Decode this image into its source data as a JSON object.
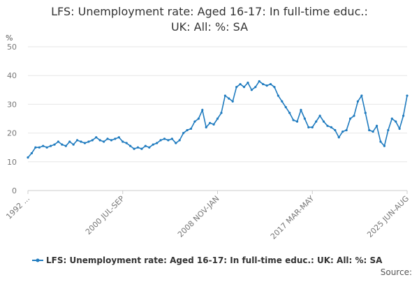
{
  "chart_data": {
    "type": "line",
    "title": [
      "LFS: Unemployment rate: Aged 16-17: In full-time educ.:",
      "UK: All: %: SA"
    ],
    "y_label": "%",
    "source": "Source:",
    "categories": [
      "1992 ...",
      null,
      null,
      null,
      null,
      null,
      null,
      null,
      null,
      null,
      null,
      null,
      null,
      null,
      null,
      null,
      null,
      null,
      null,
      null,
      null,
      null,
      null,
      null,
      null,
      "2000 JUL-SEP",
      null,
      null,
      null,
      null,
      null,
      null,
      null,
      null,
      null,
      null,
      null,
      null,
      null,
      null,
      null,
      null,
      null,
      null,
      null,
      null,
      null,
      null,
      null,
      null,
      "2008 NOV-JAN",
      null,
      null,
      null,
      null,
      null,
      null,
      null,
      null,
      null,
      null,
      null,
      null,
      null,
      null,
      null,
      null,
      null,
      null,
      null,
      null,
      null,
      null,
      null,
      null,
      "2017 MAR-MAY",
      null,
      null,
      null,
      null,
      null,
      null,
      null,
      null,
      null,
      null,
      null,
      null,
      null,
      null,
      null,
      null,
      null,
      null,
      null,
      null,
      null,
      null,
      null,
      null,
      "2025 JUN-AUG"
    ],
    "series": [
      {
        "name": "LFS: Unemployment rate: Aged 16-17: In full-time educ.: UK: All: %: SA",
        "color": "#1f7bbf",
        "values": [
          11.5,
          13,
          15,
          15,
          15.5,
          15,
          15.5,
          16,
          17,
          16,
          15.5,
          17,
          16,
          17.5,
          17,
          16.5,
          17,
          17.5,
          18.5,
          17.5,
          17,
          18,
          17.5,
          18,
          18.5,
          17,
          16.5,
          15.5,
          14.5,
          15,
          14.5,
          15.5,
          15,
          16,
          16.5,
          17.5,
          18,
          17.5,
          18,
          16.5,
          17.5,
          20,
          21,
          21.5,
          24,
          25,
          28,
          22,
          23.5,
          23,
          25,
          27,
          33,
          32,
          31,
          36,
          37,
          36,
          37.5,
          35,
          36,
          38,
          37,
          36.5,
          37,
          36,
          33,
          31,
          29,
          27,
          24.5,
          24,
          28,
          25,
          22,
          22,
          24,
          26,
          24,
          22.5,
          22,
          21,
          18.5,
          20.5,
          21,
          25,
          26,
          31,
          33,
          27,
          21,
          20.5,
          22.5,
          17,
          15.5,
          21,
          25,
          24,
          21.5,
          26,
          33
        ]
      }
    ],
    "ylim": [
      0,
      50
    ],
    "yticks": [
      0,
      10,
      20,
      30,
      40,
      50
    ],
    "grid": true
  }
}
